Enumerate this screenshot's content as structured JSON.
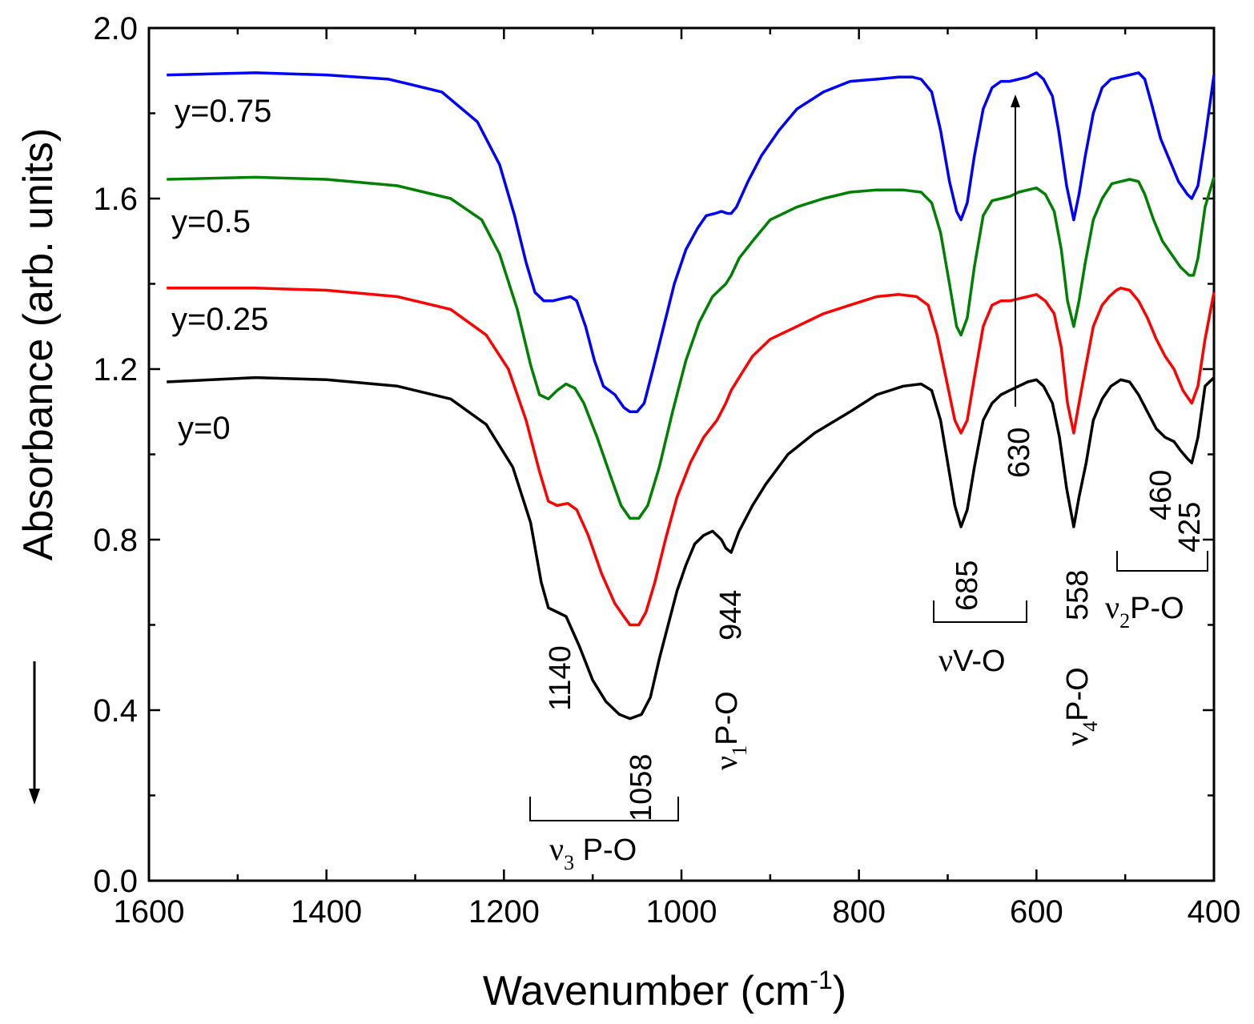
{
  "chart_data": {
    "type": "line",
    "xlabel": "Wavenumber (cm",
    "xlabel_sup": "-1",
    "xlabel_close": ")",
    "ylabel": "Absorbance (arb. units)",
    "xlim": [
      1600,
      400
    ],
    "ylim": [
      0.0,
      2.0
    ],
    "x_ticks": [
      "1600",
      "1400",
      "1200",
      "1000",
      "800",
      "600",
      "400"
    ],
    "y_ticks": [
      "0.0",
      "0.4",
      "0.8",
      "1.2",
      "1.6",
      "2.0"
    ],
    "grid": false,
    "series": [
      {
        "name": "y=0",
        "color": "#000000",
        "points": [
          [
            1580,
            1.17
          ],
          [
            1480,
            1.18
          ],
          [
            1400,
            1.175
          ],
          [
            1320,
            1.16
          ],
          [
            1260,
            1.13
          ],
          [
            1220,
            1.07
          ],
          [
            1190,
            0.97
          ],
          [
            1170,
            0.84
          ],
          [
            1158,
            0.7
          ],
          [
            1150,
            0.64
          ],
          [
            1140,
            0.63
          ],
          [
            1130,
            0.62
          ],
          [
            1115,
            0.55
          ],
          [
            1100,
            0.47
          ],
          [
            1085,
            0.42
          ],
          [
            1070,
            0.39
          ],
          [
            1058,
            0.38
          ],
          [
            1045,
            0.39
          ],
          [
            1035,
            0.43
          ],
          [
            1025,
            0.52
          ],
          [
            1015,
            0.6
          ],
          [
            1005,
            0.68
          ],
          [
            995,
            0.74
          ],
          [
            985,
            0.79
          ],
          [
            975,
            0.81
          ],
          [
            965,
            0.82
          ],
          [
            955,
            0.8
          ],
          [
            950,
            0.78
          ],
          [
            944,
            0.77
          ],
          [
            935,
            0.82
          ],
          [
            920,
            0.88
          ],
          [
            905,
            0.93
          ],
          [
            880,
            1.0
          ],
          [
            850,
            1.05
          ],
          [
            810,
            1.1
          ],
          [
            780,
            1.14
          ],
          [
            750,
            1.16
          ],
          [
            730,
            1.165
          ],
          [
            718,
            1.15
          ],
          [
            708,
            1.08
          ],
          [
            700,
            0.98
          ],
          [
            692,
            0.88
          ],
          [
            685,
            0.83
          ],
          [
            678,
            0.87
          ],
          [
            670,
            0.97
          ],
          [
            660,
            1.08
          ],
          [
            650,
            1.12
          ],
          [
            640,
            1.14
          ],
          [
            630,
            1.15
          ],
          [
            620,
            1.16
          ],
          [
            610,
            1.17
          ],
          [
            600,
            1.175
          ],
          [
            592,
            1.16
          ],
          [
            582,
            1.12
          ],
          [
            574,
            1.04
          ],
          [
            566,
            0.92
          ],
          [
            558,
            0.83
          ],
          [
            552,
            0.9
          ],
          [
            544,
            0.98
          ],
          [
            536,
            1.08
          ],
          [
            526,
            1.13
          ],
          [
            516,
            1.16
          ],
          [
            505,
            1.175
          ],
          [
            495,
            1.17
          ],
          [
            485,
            1.14
          ],
          [
            475,
            1.1
          ],
          [
            465,
            1.06
          ],
          [
            455,
            1.04
          ],
          [
            445,
            1.03
          ],
          [
            438,
            1.01
          ],
          [
            430,
            0.99
          ],
          [
            425,
            0.98
          ],
          [
            418,
            1.04
          ],
          [
            410,
            1.16
          ],
          [
            400,
            1.18
          ]
        ]
      },
      {
        "name": "y=0.25",
        "color": "#ff0000",
        "points": [
          [
            1580,
            1.39
          ],
          [
            1480,
            1.39
          ],
          [
            1400,
            1.385
          ],
          [
            1320,
            1.37
          ],
          [
            1260,
            1.34
          ],
          [
            1220,
            1.28
          ],
          [
            1195,
            1.2
          ],
          [
            1175,
            1.08
          ],
          [
            1160,
            0.96
          ],
          [
            1150,
            0.89
          ],
          [
            1140,
            0.88
          ],
          [
            1128,
            0.885
          ],
          [
            1118,
            0.87
          ],
          [
            1105,
            0.81
          ],
          [
            1090,
            0.72
          ],
          [
            1075,
            0.65
          ],
          [
            1065,
            0.62
          ],
          [
            1058,
            0.6
          ],
          [
            1048,
            0.6
          ],
          [
            1040,
            0.63
          ],
          [
            1030,
            0.7
          ],
          [
            1018,
            0.8
          ],
          [
            1005,
            0.9
          ],
          [
            990,
            0.98
          ],
          [
            975,
            1.04
          ],
          [
            960,
            1.08
          ],
          [
            950,
            1.12
          ],
          [
            944,
            1.15
          ],
          [
            935,
            1.18
          ],
          [
            920,
            1.23
          ],
          [
            900,
            1.27
          ],
          [
            870,
            1.3
          ],
          [
            840,
            1.33
          ],
          [
            810,
            1.35
          ],
          [
            780,
            1.37
          ],
          [
            755,
            1.375
          ],
          [
            735,
            1.37
          ],
          [
            722,
            1.35
          ],
          [
            712,
            1.28
          ],
          [
            702,
            1.18
          ],
          [
            692,
            1.08
          ],
          [
            685,
            1.05
          ],
          [
            678,
            1.08
          ],
          [
            670,
            1.18
          ],
          [
            660,
            1.3
          ],
          [
            650,
            1.35
          ],
          [
            640,
            1.36
          ],
          [
            630,
            1.36
          ],
          [
            620,
            1.365
          ],
          [
            610,
            1.37
          ],
          [
            600,
            1.375
          ],
          [
            590,
            1.36
          ],
          [
            580,
            1.33
          ],
          [
            572,
            1.25
          ],
          [
            565,
            1.12
          ],
          [
            558,
            1.05
          ],
          [
            552,
            1.12
          ],
          [
            545,
            1.2
          ],
          [
            536,
            1.3
          ],
          [
            526,
            1.35
          ],
          [
            518,
            1.37
          ],
          [
            510,
            1.385
          ],
          [
            505,
            1.39
          ],
          [
            495,
            1.385
          ],
          [
            485,
            1.36
          ],
          [
            475,
            1.32
          ],
          [
            465,
            1.27
          ],
          [
            455,
            1.23
          ],
          [
            445,
            1.2
          ],
          [
            435,
            1.15
          ],
          [
            425,
            1.12
          ],
          [
            418,
            1.16
          ],
          [
            410,
            1.27
          ],
          [
            400,
            1.38
          ]
        ]
      },
      {
        "name": "y=0.5",
        "color": "#008000",
        "points": [
          [
            1580,
            1.645
          ],
          [
            1480,
            1.65
          ],
          [
            1400,
            1.645
          ],
          [
            1320,
            1.63
          ],
          [
            1260,
            1.6
          ],
          [
            1225,
            1.55
          ],
          [
            1205,
            1.47
          ],
          [
            1185,
            1.34
          ],
          [
            1170,
            1.21
          ],
          [
            1160,
            1.14
          ],
          [
            1150,
            1.13
          ],
          [
            1140,
            1.15
          ],
          [
            1130,
            1.165
          ],
          [
            1120,
            1.155
          ],
          [
            1110,
            1.12
          ],
          [
            1095,
            1.04
          ],
          [
            1080,
            0.95
          ],
          [
            1068,
            0.88
          ],
          [
            1058,
            0.85
          ],
          [
            1048,
            0.85
          ],
          [
            1038,
            0.88
          ],
          [
            1025,
            0.97
          ],
          [
            1010,
            1.1
          ],
          [
            995,
            1.22
          ],
          [
            980,
            1.31
          ],
          [
            965,
            1.37
          ],
          [
            950,
            1.4
          ],
          [
            944,
            1.42
          ],
          [
            935,
            1.46
          ],
          [
            920,
            1.5
          ],
          [
            900,
            1.55
          ],
          [
            870,
            1.58
          ],
          [
            840,
            1.6
          ],
          [
            810,
            1.615
          ],
          [
            780,
            1.62
          ],
          [
            750,
            1.62
          ],
          [
            730,
            1.615
          ],
          [
            718,
            1.59
          ],
          [
            708,
            1.52
          ],
          [
            698,
            1.4
          ],
          [
            690,
            1.3
          ],
          [
            685,
            1.28
          ],
          [
            678,
            1.32
          ],
          [
            670,
            1.44
          ],
          [
            660,
            1.56
          ],
          [
            650,
            1.595
          ],
          [
            640,
            1.6
          ],
          [
            630,
            1.605
          ],
          [
            620,
            1.615
          ],
          [
            610,
            1.62
          ],
          [
            600,
            1.625
          ],
          [
            590,
            1.61
          ],
          [
            580,
            1.57
          ],
          [
            572,
            1.48
          ],
          [
            565,
            1.36
          ],
          [
            558,
            1.3
          ],
          [
            552,
            1.36
          ],
          [
            545,
            1.45
          ],
          [
            536,
            1.55
          ],
          [
            526,
            1.6
          ],
          [
            515,
            1.635
          ],
          [
            505,
            1.64
          ],
          [
            495,
            1.645
          ],
          [
            485,
            1.64
          ],
          [
            478,
            1.61
          ],
          [
            468,
            1.55
          ],
          [
            458,
            1.5
          ],
          [
            448,
            1.47
          ],
          [
            438,
            1.44
          ],
          [
            428,
            1.42
          ],
          [
            423,
            1.42
          ],
          [
            418,
            1.46
          ],
          [
            410,
            1.58
          ],
          [
            400,
            1.65
          ]
        ]
      },
      {
        "name": "y=0.75",
        "color": "#0000ff",
        "points": [
          [
            1580,
            1.89
          ],
          [
            1480,
            1.895
          ],
          [
            1400,
            1.89
          ],
          [
            1330,
            1.88
          ],
          [
            1270,
            1.85
          ],
          [
            1230,
            1.78
          ],
          [
            1205,
            1.68
          ],
          [
            1188,
            1.56
          ],
          [
            1175,
            1.45
          ],
          [
            1165,
            1.38
          ],
          [
            1155,
            1.36
          ],
          [
            1145,
            1.36
          ],
          [
            1135,
            1.365
          ],
          [
            1125,
            1.37
          ],
          [
            1118,
            1.36
          ],
          [
            1108,
            1.3
          ],
          [
            1098,
            1.22
          ],
          [
            1088,
            1.16
          ],
          [
            1075,
            1.14
          ],
          [
            1065,
            1.11
          ],
          [
            1058,
            1.1
          ],
          [
            1050,
            1.1
          ],
          [
            1042,
            1.12
          ],
          [
            1032,
            1.2
          ],
          [
            1020,
            1.3
          ],
          [
            1008,
            1.4
          ],
          [
            995,
            1.48
          ],
          [
            982,
            1.53
          ],
          [
            972,
            1.56
          ],
          [
            962,
            1.565
          ],
          [
            955,
            1.57
          ],
          [
            948,
            1.565
          ],
          [
            944,
            1.565
          ],
          [
            938,
            1.58
          ],
          [
            925,
            1.64
          ],
          [
            910,
            1.7
          ],
          [
            890,
            1.76
          ],
          [
            870,
            1.81
          ],
          [
            840,
            1.85
          ],
          [
            810,
            1.875
          ],
          [
            780,
            1.88
          ],
          [
            755,
            1.885
          ],
          [
            740,
            1.885
          ],
          [
            730,
            1.88
          ],
          [
            718,
            1.85
          ],
          [
            708,
            1.76
          ],
          [
            698,
            1.64
          ],
          [
            690,
            1.57
          ],
          [
            685,
            1.55
          ],
          [
            678,
            1.59
          ],
          [
            670,
            1.7
          ],
          [
            660,
            1.81
          ],
          [
            650,
            1.86
          ],
          [
            640,
            1.875
          ],
          [
            630,
            1.875
          ],
          [
            620,
            1.88
          ],
          [
            610,
            1.885
          ],
          [
            600,
            1.895
          ],
          [
            592,
            1.88
          ],
          [
            582,
            1.84
          ],
          [
            575,
            1.76
          ],
          [
            566,
            1.63
          ],
          [
            558,
            1.55
          ],
          [
            552,
            1.61
          ],
          [
            545,
            1.7
          ],
          [
            536,
            1.8
          ],
          [
            526,
            1.86
          ],
          [
            516,
            1.88
          ],
          [
            505,
            1.885
          ],
          [
            495,
            1.89
          ],
          [
            485,
            1.895
          ],
          [
            478,
            1.88
          ],
          [
            470,
            1.82
          ],
          [
            460,
            1.74
          ],
          [
            450,
            1.69
          ],
          [
            440,
            1.64
          ],
          [
            430,
            1.61
          ],
          [
            425,
            1.6
          ],
          [
            418,
            1.63
          ],
          [
            410,
            1.74
          ],
          [
            400,
            1.89
          ]
        ]
      }
    ],
    "series_labels": [
      "y=0.75",
      "y=0.5",
      "y=0.25",
      "y=0"
    ],
    "annotations": {
      "n1140": "1140",
      "n1058": "1058",
      "n944": "944",
      "n685": "685",
      "n630": "630",
      "n558": "558",
      "n460": "460",
      "n425": "425",
      "nu": "ν",
      "v3_sub": "3",
      "v3_text": " P-O",
      "v1_sub": "1",
      "v1_text": "P-O",
      "vVO_text": "V-O",
      "v4_sub": "4",
      "v4_text": "P-O",
      "v2_sub": "2",
      "v2_text": "P-O"
    }
  }
}
